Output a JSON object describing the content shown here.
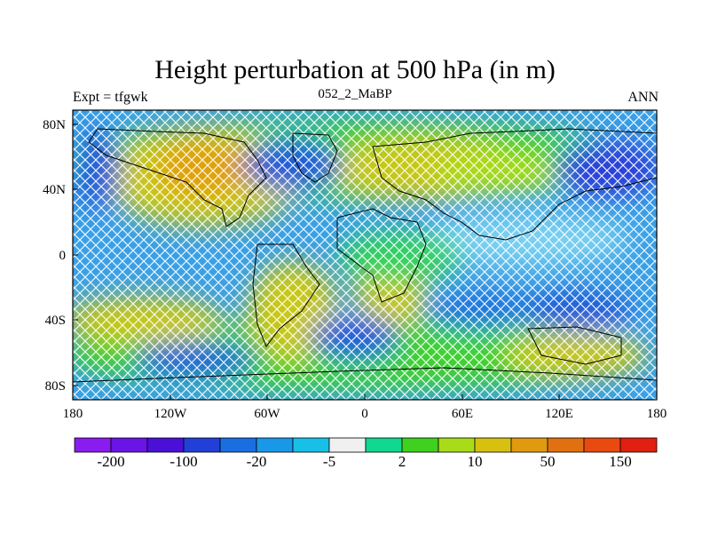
{
  "title": "Height perturbation at 500 hPa (in m)",
  "left_label": "Expt = tfgwk",
  "center_label": "052_2_MaBP",
  "right_label": "ANN",
  "y_ticks": [
    "80N",
    "40N",
    "0",
    "40S",
    "80S"
  ],
  "x_ticks": [
    "180",
    "120W",
    "60W",
    "0",
    "60E",
    "120E",
    "180"
  ],
  "colorbar": {
    "colors": [
      "#8a1cf0",
      "#6a14e6",
      "#4a10d8",
      "#2040d8",
      "#1a6ee0",
      "#1a98e8",
      "#18c0e8",
      "#f0f0f0",
      "#10d890",
      "#40d020",
      "#a8dc18",
      "#d8c010",
      "#e09a10",
      "#e07010",
      "#e84a10",
      "#e02010"
    ],
    "labels": [
      "-200",
      "-100",
      "-20",
      "-5",
      "2",
      "10",
      "50",
      "150"
    ]
  }
}
